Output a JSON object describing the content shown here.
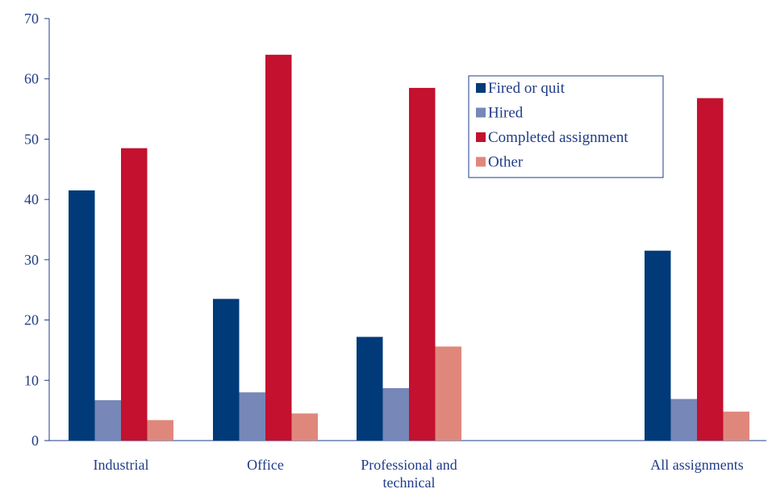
{
  "chart_data": {
    "type": "bar",
    "title": "",
    "xlabel": "",
    "ylabel": "",
    "ylim": [
      0,
      70
    ],
    "yticks": [
      0,
      10,
      20,
      30,
      40,
      50,
      60,
      70
    ],
    "grid": false,
    "legend_position": "top-right",
    "categories": [
      "Industrial",
      "Office",
      "Professional and technical",
      "All assignments"
    ],
    "category_lines": [
      [
        "Industrial"
      ],
      [
        "Office"
      ],
      [
        "Professional and",
        "technical"
      ],
      [
        "All assignments"
      ]
    ],
    "series": [
      {
        "name": "Fired or quit",
        "color": "#003a78",
        "values": [
          41.5,
          23.5,
          17.2,
          31.5
        ]
      },
      {
        "name": "Hired",
        "color": "#7687b8",
        "values": [
          6.7,
          8.0,
          8.7,
          6.9
        ]
      },
      {
        "name": "Completed assignment",
        "color": "#c3112f",
        "values": [
          48.5,
          64.0,
          58.5,
          56.8
        ]
      },
      {
        "name": "Other",
        "color": "#e0877b",
        "values": [
          3.4,
          4.5,
          15.6,
          4.8
        ]
      }
    ],
    "axis_color": "#1f3c88",
    "text_color": "#1f3c88"
  }
}
